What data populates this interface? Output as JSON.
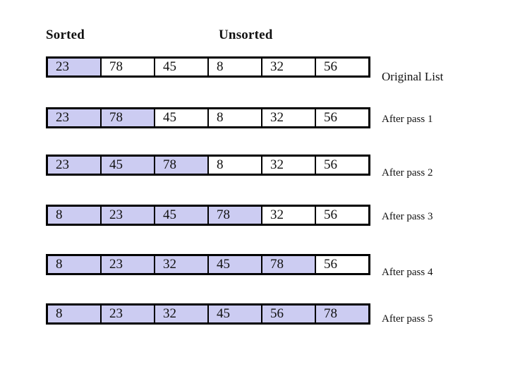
{
  "header": {
    "sorted": "Sorted",
    "unsorted": "Unsorted"
  },
  "colors": {
    "highlight": "#ccccf2",
    "cell_background": "#ffffff",
    "border": "#000000",
    "text": "#111111",
    "page_background": "#ffffff"
  },
  "rows": [
    {
      "label": "Original List",
      "values": [
        "23",
        "78",
        "45",
        "8",
        "32",
        "56"
      ],
      "sorted_count": 1
    },
    {
      "label": "After pass 1",
      "values": [
        "23",
        "78",
        "45",
        "8",
        "32",
        "56"
      ],
      "sorted_count": 2
    },
    {
      "label": "After pass 2",
      "values": [
        "23",
        "45",
        "78",
        "8",
        "32",
        "56"
      ],
      "sorted_count": 3
    },
    {
      "label": "After pass 3",
      "values": [
        "8",
        "23",
        "45",
        "78",
        "32",
        "56"
      ],
      "sorted_count": 4
    },
    {
      "label": "After pass 4",
      "values": [
        "8",
        "23",
        "32",
        "45",
        "78",
        "56"
      ],
      "sorted_count": 5
    },
    {
      "label": "After pass 5",
      "values": [
        "8",
        "23",
        "32",
        "45",
        "56",
        "78"
      ],
      "sorted_count": 6
    }
  ]
}
